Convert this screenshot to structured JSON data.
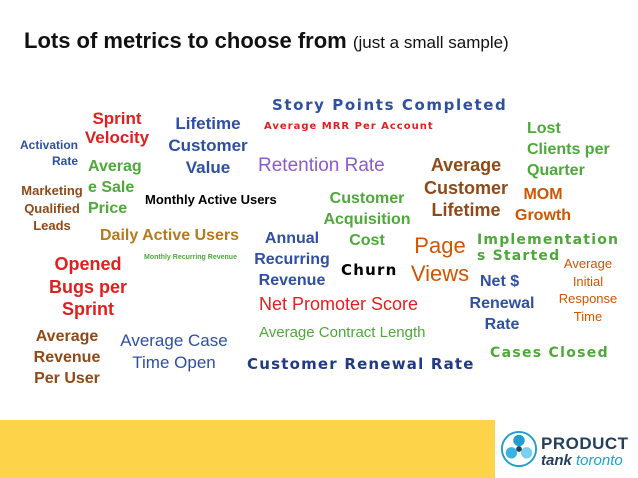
{
  "title": {
    "main": "Lots of metrics to choose from",
    "sub": "(just a small sample)"
  },
  "metrics": {
    "story_points": "Story Points Completed",
    "sprint_velocity": [
      "Sprint",
      "Velocity"
    ],
    "lifetime_customer_value": [
      "Lifetime",
      "Customer",
      "Value"
    ],
    "average_mrr": "Average MRR Per Account",
    "lost_clients": [
      "Lost",
      "Clients per",
      "Quarter"
    ],
    "activation_rate": [
      "Activation",
      "Rate"
    ],
    "average_sale_price": [
      "Averag",
      "e Sale",
      "Price"
    ],
    "retention_rate": "Retention Rate",
    "average_customer_lifetime": [
      "Average",
      "Customer",
      "Lifetime"
    ],
    "mom_growth": [
      "MOM",
      "Growth"
    ],
    "mql": [
      "Marketing",
      "Qualified",
      "Leads"
    ],
    "monthly_active_users": "Monthly Active Users",
    "cac": [
      "Customer",
      "Acquisition",
      "Cost"
    ],
    "daily_active_users": "Daily Active Users",
    "arr": [
      "Annual",
      "Recurring",
      "Revenue"
    ],
    "page_views": [
      "Page",
      "Views"
    ],
    "implementations": [
      "Implementation",
      "s Started"
    ],
    "average_initial_response": [
      "Average",
      "Initial",
      "Response",
      "Time"
    ],
    "opened_bugs": [
      "Opened",
      "Bugs per",
      "Sprint"
    ],
    "mrr_small": "Monthly Recurring Revenue",
    "churn": "Churn",
    "net_renewal": [
      "Net $",
      "Renewal",
      "Rate"
    ],
    "nps": "Net Promoter Score",
    "arpu": [
      "Average",
      "Revenue",
      "Per User"
    ],
    "average_case_time": [
      "Average Case",
      "Time Open"
    ],
    "average_contract_length": "Average Contract Length",
    "cases_closed": "Cases Closed",
    "customer_renewal_rate": "Customer Renewal Rate"
  },
  "logo": {
    "line1": "PRODUCT",
    "tank": "tank",
    "city": "toronto"
  },
  "colors": {
    "footer": "#fdd34a",
    "red": "#e02020",
    "blue": "#2f4fa3",
    "green": "#4ea83a",
    "orange": "#d35400",
    "purple": "#8a5bd0"
  }
}
